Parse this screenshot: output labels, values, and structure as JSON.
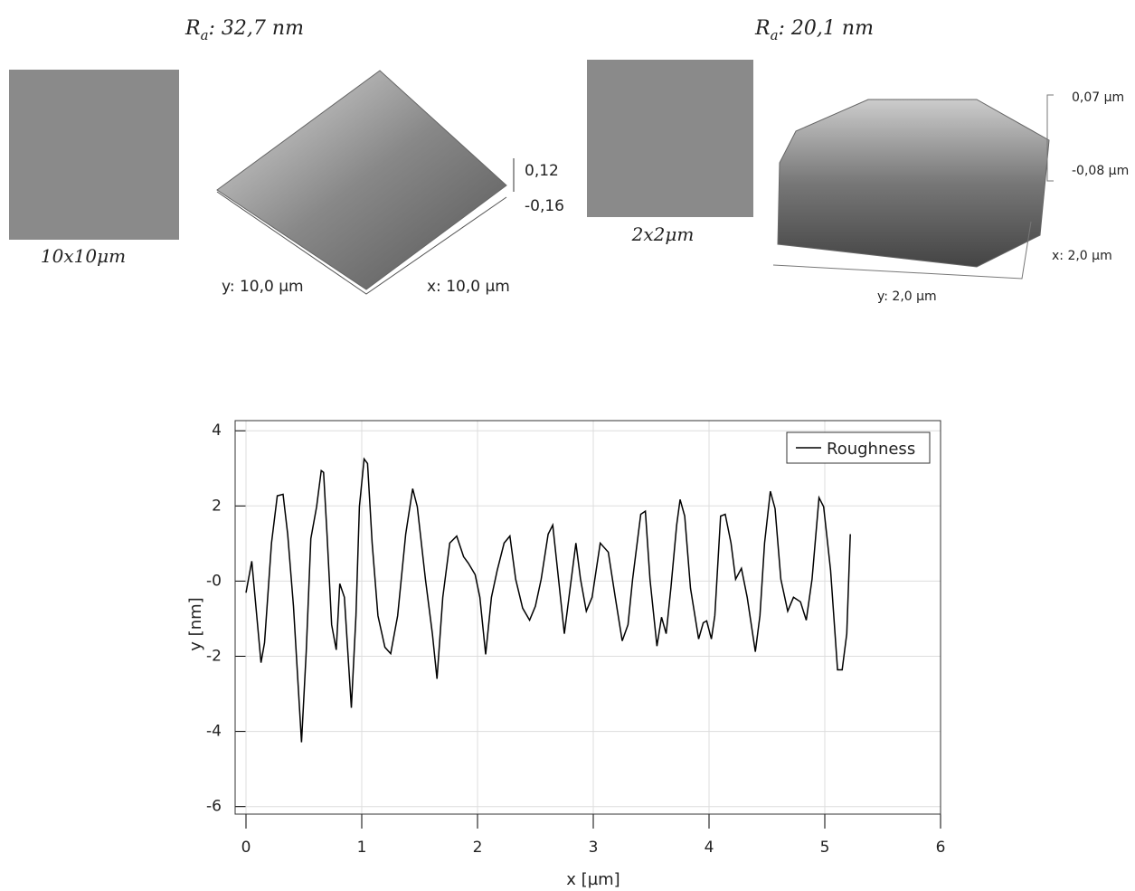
{
  "panels": [
    {
      "ra_symbol": "R",
      "ra_sub": "a",
      "ra_text": ": 32,7 nm",
      "scan_label": "10x10μm",
      "z_high": "0,12",
      "z_low": "-0,16",
      "x_size": "x: 10,0 µm",
      "y_size": "y: 10,0 µm"
    },
    {
      "ra_symbol": "R",
      "ra_sub": "a",
      "ra_text": ": 20,1 nm",
      "scan_label": "2x2μm",
      "z_high": "0,07 µm",
      "z_low": "-0,08 µm",
      "x_size": "x: 2,0 µm",
      "y_size": "y: 2,0 µm"
    }
  ],
  "chart_data": {
    "type": "line",
    "xlabel": "x [µm]",
    "ylabel": "y [nm]",
    "xlim": [
      0,
      6
    ],
    "xticks": [
      0,
      1,
      2,
      3,
      4,
      5,
      6
    ],
    "ylim": [
      -6.2,
      4.27
    ],
    "yticks": [
      4,
      2,
      {
        "value": 0,
        "label": "-0"
      },
      -2,
      -4,
      -6
    ],
    "grid": true,
    "legend": "upper right",
    "series": [
      {
        "name": "Roughness",
        "color": "#000000",
        "x": [
          0,
          0.05,
          0.13,
          0.16,
          0.22,
          0.27,
          0.32,
          0.36,
          0.41,
          0.48,
          0.52,
          0.56,
          0.61,
          0.65,
          0.67,
          0.7,
          0.74,
          0.78,
          0.81,
          0.85,
          0.91,
          0.95,
          0.98,
          1.02,
          1.05,
          1.09,
          1.14,
          1.2,
          1.25,
          1.31,
          1.38,
          1.44,
          1.48,
          1.55,
          1.61,
          1.65,
          1.7,
          1.76,
          1.82,
          1.88,
          1.92,
          1.98,
          2.02,
          2.07,
          2.12,
          2.17,
          2.23,
          2.28,
          2.33,
          2.39,
          2.45,
          2.5,
          2.55,
          2.61,
          2.65,
          2.7,
          2.75,
          2.8,
          2.85,
          2.89,
          2.94,
          2.99,
          3.06,
          3.13,
          3.19,
          3.25,
          3.3,
          3.34,
          3.41,
          3.45,
          3.49,
          3.55,
          3.59,
          3.63,
          3.67,
          3.72,
          3.75,
          3.79,
          3.84,
          3.91,
          3.95,
          3.98,
          4.02,
          4.05,
          4.1,
          4.14,
          4.19,
          4.23,
          4.28,
          4.33,
          4.4,
          4.44,
          4.48,
          4.53,
          4.57,
          4.62,
          4.68,
          4.73,
          4.79,
          4.84,
          4.89,
          4.95,
          4.99,
          5.05,
          5.11,
          5.15,
          5.19,
          5.22
        ],
        "values": [
          -0.31,
          0.53,
          -2.17,
          -1.64,
          1.01,
          2.27,
          2.31,
          1.25,
          -0.67,
          -4.29,
          -1.88,
          1.13,
          1.98,
          2.94,
          2.89,
          1.25,
          -1.16,
          -1.83,
          -0.07,
          -0.43,
          -3.37,
          -0.92,
          1.98,
          3.25,
          3.13,
          1.01,
          -0.92,
          -1.76,
          -1.93,
          -0.92,
          1.25,
          2.46,
          1.98,
          0.05,
          -1.4,
          -2.6,
          -0.43,
          1.01,
          1.2,
          0.65,
          0.48,
          0.17,
          -0.43,
          -1.95,
          -0.43,
          0.29,
          1.01,
          1.2,
          0.05,
          -0.72,
          -1.04,
          -0.67,
          0.05,
          1.25,
          1.49,
          0.05,
          -1.4,
          -0.19,
          1.01,
          0.05,
          -0.8,
          -0.43,
          1.01,
          0.77,
          -0.43,
          -1.59,
          -1.16,
          0.05,
          1.78,
          1.86,
          0.05,
          -1.73,
          -0.96,
          -1.4,
          -0.19,
          1.49,
          2.17,
          1.73,
          -0.19,
          -1.54,
          -1.11,
          -1.06,
          -1.54,
          -0.92,
          1.73,
          1.78,
          1.01,
          0.05,
          0.34,
          -0.43,
          -1.88,
          -0.92,
          1.01,
          2.39,
          1.93,
          0.05,
          -0.8,
          -0.43,
          -0.55,
          -1.04,
          0.05,
          2.22,
          1.98,
          0.29,
          -2.36,
          -2.36,
          -1.4,
          1.25
        ]
      }
    ]
  }
}
